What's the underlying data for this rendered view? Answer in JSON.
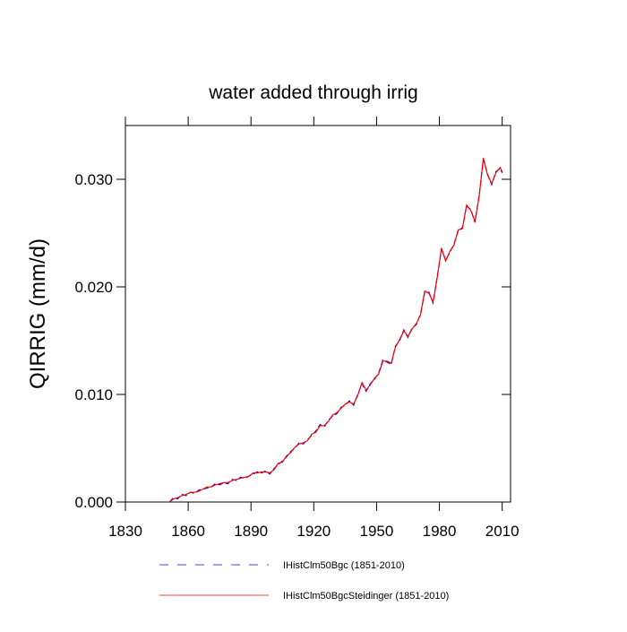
{
  "chart_data": {
    "type": "line",
    "title": "water added through irrig",
    "ylabel": "QIRRIG  (mm/d)",
    "xlim": [
      1830,
      2014
    ],
    "ylim": [
      0,
      0.035
    ],
    "xticks": [
      1830,
      1860,
      1890,
      1920,
      1950,
      1980,
      2010
    ],
    "yticks": [
      {
        "value": 0,
        "label": "0.000"
      },
      {
        "value": 0.01,
        "label": "0.010"
      },
      {
        "value": 0.02,
        "label": "0.020"
      },
      {
        "value": 0.03,
        "label": "0.030"
      }
    ],
    "x": [
      1851,
      1853,
      1855,
      1857,
      1859,
      1861,
      1863,
      1865,
      1867,
      1869,
      1871,
      1873,
      1875,
      1877,
      1879,
      1881,
      1883,
      1885,
      1887,
      1889,
      1891,
      1893,
      1895,
      1897,
      1899,
      1901,
      1903,
      1905,
      1907,
      1909,
      1911,
      1913,
      1915,
      1917,
      1919,
      1921,
      1923,
      1925,
      1927,
      1929,
      1931,
      1933,
      1935,
      1937,
      1939,
      1941,
      1943,
      1945,
      1947,
      1949,
      1951,
      1953,
      1955,
      1957,
      1959,
      1961,
      1963,
      1965,
      1967,
      1969,
      1971,
      1973,
      1975,
      1977,
      1979,
      1981,
      1983,
      1985,
      1987,
      1989,
      1991,
      1993,
      1995,
      1997,
      1999,
      2001,
      2003,
      2005,
      2007,
      2009,
      2010
    ],
    "series": [
      {
        "name": "IHistClm50Bgc (1851-2010)",
        "color": "#0000ff",
        "dashed": true,
        "values": [
          0.0,
          0.0004,
          0.0003,
          0.0007,
          0.0006,
          0.0009,
          0.0008,
          0.0011,
          0.0012,
          0.0013,
          0.0014,
          0.0017,
          0.0016,
          0.0018,
          0.0017,
          0.0021,
          0.002,
          0.0023,
          0.0022,
          0.0024,
          0.0026,
          0.0028,
          0.0027,
          0.0029,
          0.0026,
          0.0031,
          0.0035,
          0.0038,
          0.0042,
          0.0047,
          0.005,
          0.0055,
          0.0054,
          0.0058,
          0.0062,
          0.0066,
          0.0072,
          0.007,
          0.0076,
          0.008,
          0.0082,
          0.0088,
          0.009,
          0.0094,
          0.009,
          0.01,
          0.011,
          0.0103,
          0.011,
          0.0114,
          0.012,
          0.0132,
          0.013,
          0.0128,
          0.0145,
          0.015,
          0.016,
          0.0153,
          0.0162,
          0.0165,
          0.0175,
          0.0195,
          0.0195,
          0.0185,
          0.021,
          0.0235,
          0.0225,
          0.0232,
          0.024,
          0.0252,
          0.0255,
          0.0275,
          0.0272,
          0.026,
          0.0285,
          0.0318,
          0.0305,
          0.0295,
          0.0307,
          0.031,
          0.0306
        ]
      },
      {
        "name": "IHistClm50BgcSteidinger (1851-2010)",
        "color": "#ff0000",
        "dashed": false,
        "values": [
          0.0,
          0.0003,
          0.0004,
          0.0006,
          0.0007,
          0.0009,
          0.0009,
          0.001,
          0.0012,
          0.0014,
          0.0014,
          0.0016,
          0.0017,
          0.0018,
          0.0018,
          0.002,
          0.0021,
          0.0022,
          0.0023,
          0.0024,
          0.0027,
          0.0027,
          0.0028,
          0.0028,
          0.0027,
          0.003,
          0.0036,
          0.0037,
          0.0043,
          0.0046,
          0.0051,
          0.0054,
          0.0055,
          0.0057,
          0.0063,
          0.0065,
          0.0071,
          0.0071,
          0.0075,
          0.0081,
          0.0083,
          0.0087,
          0.0091,
          0.0093,
          0.0091,
          0.0099,
          0.0111,
          0.0104,
          0.0109,
          0.0115,
          0.0119,
          0.0131,
          0.0131,
          0.0129,
          0.0144,
          0.0151,
          0.0159,
          0.0154,
          0.0161,
          0.0166,
          0.0174,
          0.0196,
          0.0194,
          0.0186,
          0.0209,
          0.0236,
          0.0224,
          0.0233,
          0.0239,
          0.0253,
          0.0254,
          0.0276,
          0.0271,
          0.0261,
          0.0284,
          0.032,
          0.0304,
          0.0296,
          0.0306,
          0.0311,
          0.0307
        ]
      }
    ]
  }
}
